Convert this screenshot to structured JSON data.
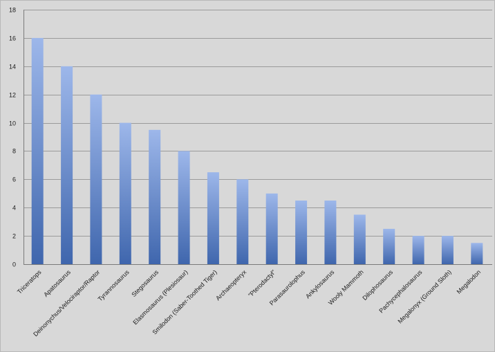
{
  "chart_data": {
    "type": "bar",
    "title": "",
    "xlabel": "",
    "ylabel": "",
    "ylim": [
      0,
      18
    ],
    "ytick_step": 2,
    "grid": true,
    "legend": "none",
    "bar_color_top": "#9db7ea",
    "bar_color_bottom": "#3f66ad",
    "categories": [
      "Triceratops",
      "Apatosaurus",
      "Deinonychus/Velociraptor/Raptor",
      "Tyrannosaurus",
      "Stegosaurus",
      "Elasmosaurus (Plesiosaur)",
      "Smilodon (Saber-Toothed Tiger)",
      "Archaeopteryx",
      "\"Pterodactyl\"",
      "Parasaurolophus",
      "Ankylosaurus",
      "Wooly Mammoth",
      "Dilophosaurus",
      "Pachycephalosaurus",
      "Megalonyx (Ground Sloth)",
      "Megalodon"
    ],
    "values": [
      16,
      14,
      12,
      10,
      9.5,
      8,
      6.5,
      6,
      5,
      4.5,
      4.5,
      3.5,
      2.5,
      2,
      2,
      1.5
    ]
  }
}
